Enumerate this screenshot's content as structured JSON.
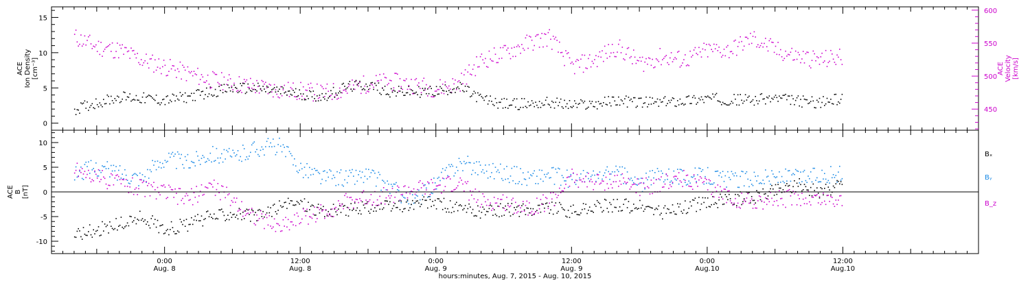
{
  "colors": {
    "black": "#000000",
    "magenta": "#cc00cc",
    "blue": "#1a8ae6"
  },
  "chart_data": [
    {
      "type": "scatter",
      "panel": "top",
      "ylabel_lines": [
        "ACE",
        "Ion Density",
        "[cm⁻³]"
      ],
      "ylabel": "ACE Ion Density [cm⁻³]",
      "ylim": [
        -1,
        16.5
      ],
      "yticks": [
        "0",
        "5",
        "10",
        "15"
      ],
      "right_axis": {
        "ylabel_lines": [
          "ACE",
          "Velocity",
          "[km/s]"
        ],
        "ylabel": "ACE Velocity [km/s]",
        "ylim": [
          418,
          605
        ],
        "yticks": [
          "450",
          "500",
          "550",
          "600"
        ],
        "color": "#cc00cc"
      },
      "series": [
        {
          "color": "#000000",
          "axis": "left",
          "x": [
            -8,
            -6,
            -4,
            -2,
            0,
            2,
            4,
            6,
            8,
            10,
            12,
            14,
            16,
            18,
            20,
            22,
            24,
            26,
            28,
            30,
            32,
            34,
            36,
            38,
            40,
            42,
            44,
            46,
            48,
            50,
            52,
            54,
            56,
            58,
            60
          ],
          "values": [
            2.0,
            3.0,
            3.8,
            3.6,
            3.3,
            3.8,
            4.5,
            5.0,
            5.0,
            4.6,
            4.2,
            3.8,
            5.2,
            5.5,
            4.5,
            4.5,
            4.6,
            5.2,
            3.5,
            2.8,
            2.8,
            3.0,
            2.6,
            2.8,
            3.3,
            3.0,
            3.0,
            3.3,
            3.6,
            3.4,
            3.4,
            3.6,
            3.2,
            3.0,
            3.6
          ]
        },
        {
          "color": "#cc00cc",
          "axis": "right",
          "x": [
            -8,
            -6,
            -4,
            -2,
            0,
            2,
            4,
            6,
            8,
            10,
            12,
            14,
            16,
            18,
            20,
            22,
            24,
            26,
            28,
            30,
            32,
            34,
            36,
            38,
            40,
            42,
            44,
            46,
            48,
            50,
            52,
            54,
            56,
            58,
            60
          ],
          "values": [
            560,
            545,
            540,
            525,
            515,
            505,
            495,
            490,
            485,
            480,
            478,
            475,
            480,
            490,
            492,
            488,
            482,
            490,
            525,
            535,
            550,
            560,
            515,
            525,
            545,
            520,
            530,
            525,
            540,
            540,
            558,
            540,
            530,
            525,
            530
          ]
        }
      ]
    },
    {
      "type": "scatter",
      "panel": "bottom",
      "ylabel_lines": [
        "ACE",
        "B",
        "[nT]"
      ],
      "ylabel": "ACE B [nT]",
      "ylim": [
        -12.5,
        12.5
      ],
      "yticks": [
        "-10",
        "-5",
        "0",
        "5",
        "10"
      ],
      "x_major_ticks": [
        0,
        12,
        24,
        36,
        48,
        60
      ],
      "x_tick_labels": [
        [
          "0:00",
          "Aug. 8"
        ],
        [
          "12:00",
          "Aug. 8"
        ],
        [
          "0:00",
          "Aug. 9"
        ],
        [
          "12:00",
          "Aug. 9"
        ],
        [
          "0:00",
          "Aug.10"
        ],
        [
          "12:00",
          "Aug.10"
        ]
      ],
      "xlim": [
        -10,
        72
      ],
      "xlabel": "hours:minutes, Aug.  7, 2015 - Aug. 10, 2015",
      "series": [
        {
          "name": "Bₓ",
          "color": "#000000",
          "x": [
            -8,
            -6,
            -4,
            -2,
            0,
            2,
            4,
            6,
            8,
            10,
            12,
            14,
            16,
            18,
            20,
            22,
            24,
            26,
            28,
            30,
            32,
            34,
            36,
            38,
            40,
            42,
            44,
            46,
            48,
            50,
            52,
            54,
            56,
            58,
            60
          ],
          "values": [
            -8.5,
            -7.5,
            -6.5,
            -5,
            -7.5,
            -6.5,
            -5,
            -4,
            -5,
            -3,
            -2,
            -4,
            -3.5,
            -3,
            -3,
            -2.5,
            -2,
            -3.5,
            -4,
            -3.5,
            -3.5,
            -3,
            -4,
            -3,
            -2.5,
            -3,
            -4,
            -3,
            -2,
            -1.5,
            -1,
            0.5,
            1.5,
            0,
            2
          ]
        },
        {
          "name": "Bᵧ",
          "color": "#1a8ae6",
          "x": [
            -8,
            -6,
            -4,
            -2,
            0,
            2,
            4,
            6,
            8,
            10,
            12,
            14,
            16,
            18,
            20,
            22,
            24,
            26,
            28,
            30,
            32,
            34,
            36,
            38,
            40,
            42,
            44,
            46,
            48,
            50,
            52,
            54,
            56,
            58,
            60
          ],
          "values": [
            4,
            5,
            4,
            3,
            7,
            6,
            8,
            7,
            9,
            9.5,
            5,
            3,
            3,
            3.5,
            1,
            -2,
            2,
            6,
            5,
            4,
            3,
            3.5,
            2.5,
            3,
            4,
            1.5,
            4,
            3,
            3.5,
            2.5,
            3,
            3,
            3,
            3.5,
            3.5
          ]
        },
        {
          "name": "B_z",
          "color": "#cc00cc",
          "x": [
            -8,
            -6,
            -4,
            -2,
            0,
            2,
            4,
            6,
            8,
            10,
            12,
            14,
            16,
            18,
            20,
            22,
            24,
            26,
            28,
            30,
            32,
            34,
            36,
            38,
            40,
            42,
            44,
            46,
            48,
            50,
            52,
            54,
            56,
            58,
            60
          ],
          "values": [
            5,
            3,
            2,
            1,
            0,
            -1.5,
            1.5,
            -1.5,
            -5,
            -7,
            -5,
            -4,
            -2,
            -1,
            -0.5,
            0.5,
            1,
            2,
            -2,
            -2,
            -3,
            -2,
            3,
            2,
            2.5,
            1,
            2,
            3,
            1,
            -1,
            -2,
            -1.5,
            -1,
            -1.5,
            -1.5
          ]
        }
      ]
    }
  ]
}
